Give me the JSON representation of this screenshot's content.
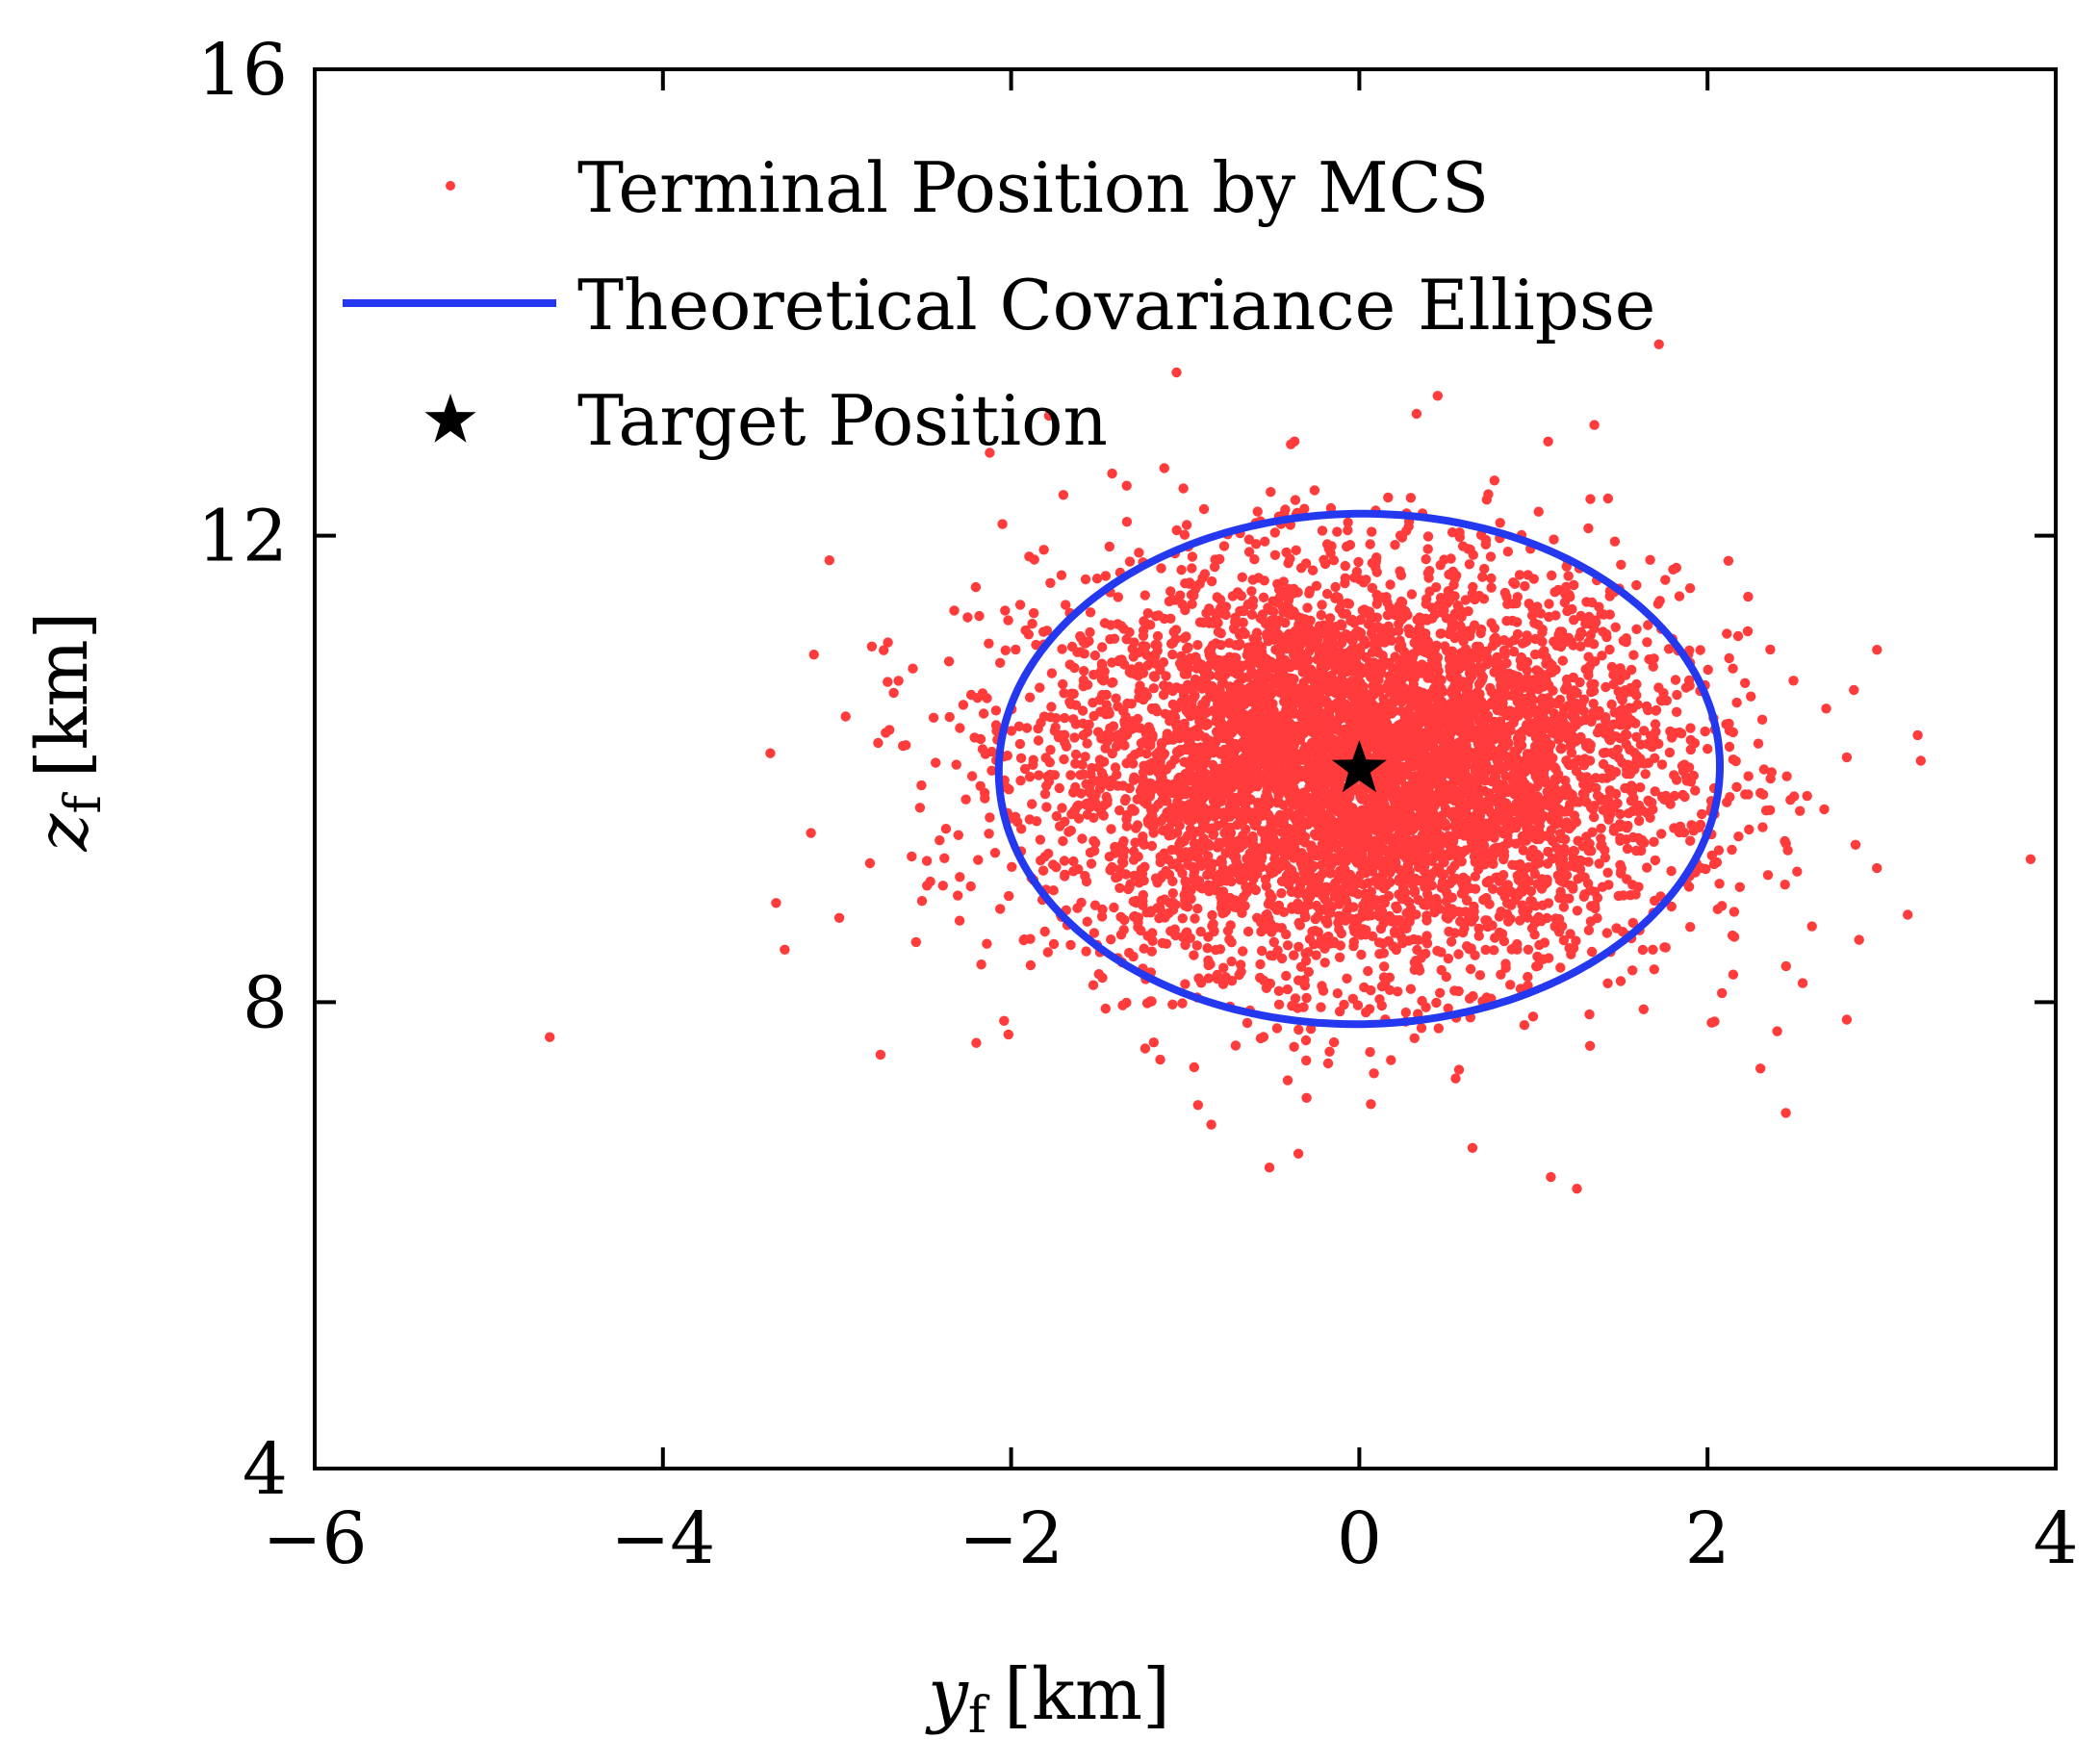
{
  "chart_data": {
    "type": "scatter",
    "title": "",
    "xlabel": {
      "var": "y",
      "sub": "f",
      "unit": "[km]"
    },
    "ylabel": {
      "var": "z",
      "sub": "f",
      "unit": "[km]"
    },
    "xlim": [
      -6,
      4
    ],
    "ylim": [
      4,
      16
    ],
    "xticks": [
      -6,
      -4,
      -2,
      0,
      2,
      4
    ],
    "xtick_labels": [
      "−6",
      "−4",
      "−2",
      "0",
      "2",
      "4"
    ],
    "yticks": [
      4,
      8,
      12,
      16
    ],
    "ytick_labels": [
      "4",
      "8",
      "12",
      "16"
    ],
    "grid": false,
    "legend_position": "top-left",
    "series": [
      {
        "name": "Terminal Position by MCS",
        "type": "scatter",
        "color": "#ff3b3b",
        "distribution": {
          "count": 6000,
          "mean": [
            0.0,
            10.0
          ],
          "std": [
            0.9,
            0.85
          ]
        },
        "outliers": [
          [
            -4.65,
            7.7
          ],
          [
            -3.3,
            8.45
          ],
          [
            -3.35,
            8.85
          ],
          [
            -3.15,
            9.45
          ],
          [
            -2.95,
            10.45
          ],
          [
            -2.8,
            11.05
          ],
          [
            -2.75,
            7.55
          ],
          [
            -2.2,
            7.65
          ],
          [
            -1.05,
            13.4
          ],
          [
            -0.35,
            6.7
          ],
          [
            0.45,
            13.2
          ],
          [
            1.35,
            12.95
          ],
          [
            1.1,
            6.5
          ],
          [
            1.25,
            6.4
          ],
          [
            2.45,
            7.05
          ],
          [
            2.8,
            10.1
          ],
          [
            3.15,
            8.75
          ],
          [
            2.85,
            9.35
          ],
          [
            2.8,
            7.85
          ],
          [
            -2.25,
            11.3
          ],
          [
            -1.7,
            12.35
          ],
          [
            -2.05,
            12.1
          ],
          [
            1.9,
            11.55
          ],
          [
            2.6,
            8.65
          ],
          [
            -0.85,
            6.95
          ],
          [
            0.65,
            6.75
          ],
          [
            2.4,
            7.75
          ]
        ]
      },
      {
        "name": "Theoretical Covariance Ellipse",
        "type": "ellipse",
        "color": "#2438f0",
        "center": [
          0.0,
          10.0
        ],
        "semi_axes": [
          2.07,
          2.19
        ],
        "rotation_deg": -5
      },
      {
        "name": "Target Position",
        "type": "marker",
        "marker": "star",
        "color": "#000000",
        "point": [
          0,
          10
        ]
      }
    ]
  }
}
